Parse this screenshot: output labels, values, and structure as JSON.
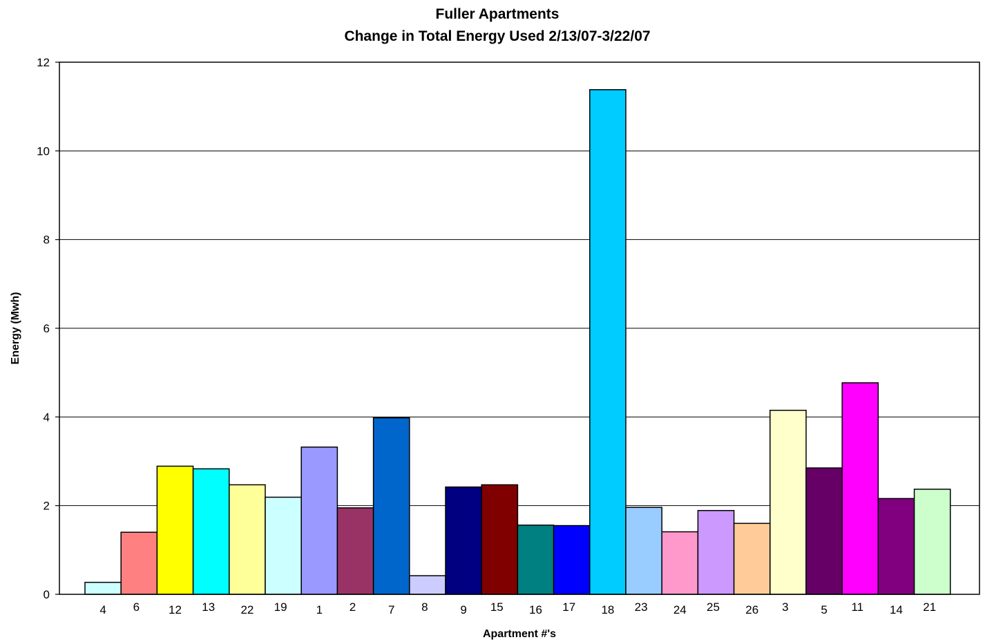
{
  "chart_data": {
    "type": "bar",
    "title": "Fuller Apartments",
    "subtitle": "Change in Total Energy Used 2/13/07-3/22/07",
    "xlabel": "Apartment #'s",
    "ylabel": "Energy (Mwh)",
    "ylim": [
      0,
      12
    ],
    "yticks": [
      0,
      2,
      4,
      6,
      8,
      10,
      12
    ],
    "grid": true,
    "legend": "none",
    "categories": [
      "4",
      "6",
      "12",
      "13",
      "22",
      "19",
      "1",
      "2",
      "7",
      "8",
      "9",
      "15",
      "16",
      "17",
      "18",
      "23",
      "24",
      "25",
      "26",
      "3",
      "5",
      "11",
      "14",
      "21"
    ],
    "values": [
      0.27,
      1.4,
      2.89,
      2.83,
      2.47,
      2.19,
      3.32,
      1.95,
      3.98,
      0.42,
      2.42,
      2.47,
      1.56,
      1.55,
      11.38,
      1.96,
      1.41,
      1.89,
      1.6,
      4.15,
      2.85,
      4.77,
      2.16,
      2.37
    ],
    "colors": [
      "#ccffff",
      "#ff8080",
      "#ffff00",
      "#00ffff",
      "#ffff99",
      "#ccffff",
      "#9999ff",
      "#993366",
      "#0066cc",
      "#ccccff",
      "#000080",
      "#800000",
      "#008080",
      "#0000ff",
      "#00ccff",
      "#99ccff",
      "#ff99cc",
      "#cc99ff",
      "#ffcc99",
      "#ffffcc",
      "#660066",
      "#ff00ff",
      "#800080",
      "#ccffcc"
    ]
  }
}
